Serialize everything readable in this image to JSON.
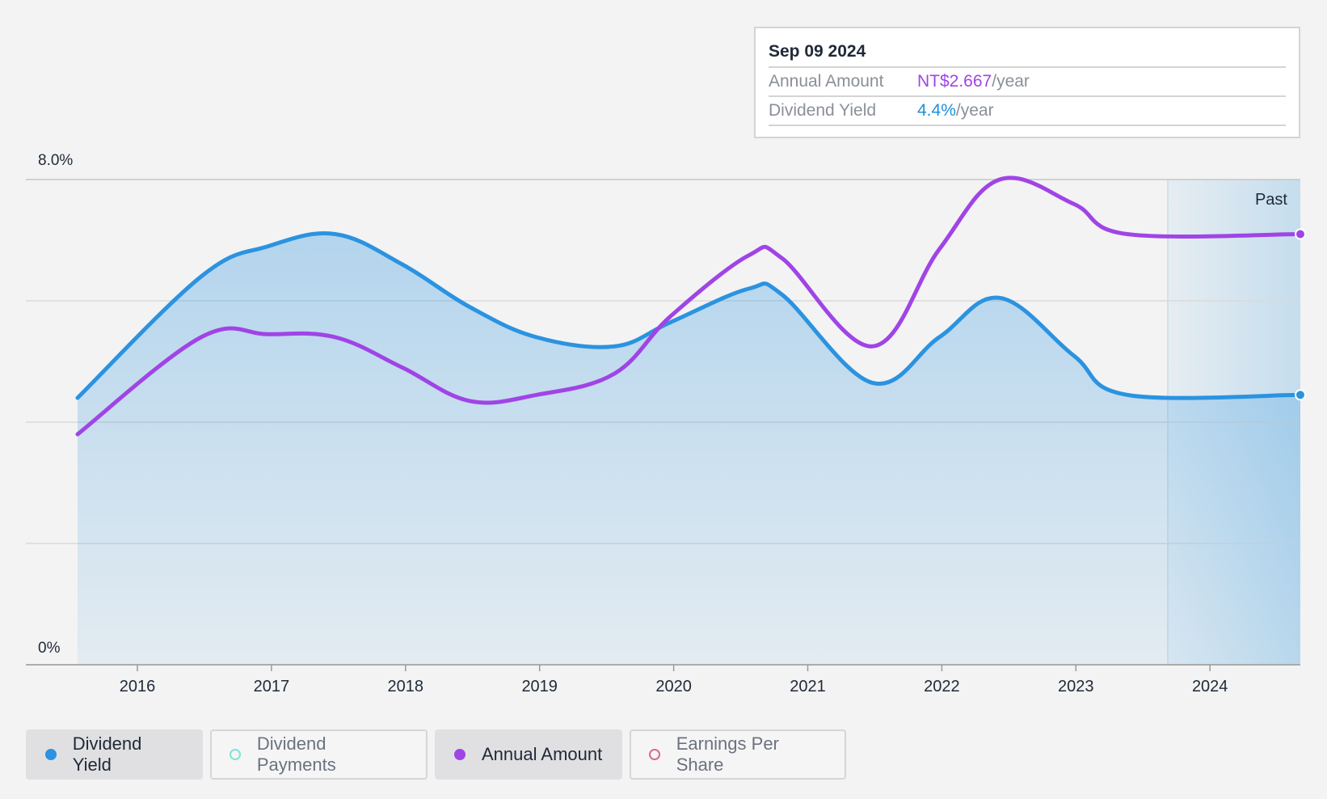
{
  "chart_data": {
    "type": "area",
    "y_axis": {
      "min": 0,
      "max": 8.0,
      "top_label": "8.0%",
      "bottom_label": "0%"
    },
    "x_ticks": [
      "2016",
      "2017",
      "2018",
      "2019",
      "2020",
      "2021",
      "2022",
      "2023",
      "2024"
    ],
    "past_label": "Past",
    "series": [
      {
        "name": "Dividend Yield",
        "color": "#2b93e0",
        "x": [
          2015.58,
          2016.5,
          2017.0,
          2017.5,
          2018.0,
          2018.5,
          2019.0,
          2019.58,
          2020.0,
          2020.58,
          2020.83,
          2021.5,
          2022.0,
          2022.45,
          2023.0,
          2023.4,
          2024.69
        ],
        "values": [
          4.4,
          6.4,
          6.9,
          7.1,
          6.6,
          5.9,
          5.4,
          5.25,
          5.65,
          6.2,
          6.1,
          4.65,
          5.4,
          6.05,
          5.1,
          4.45,
          4.45
        ]
      },
      {
        "name": "Annual Amount",
        "color": "#a044e6",
        "x": [
          2015.58,
          2016.5,
          2017.0,
          2017.5,
          2018.0,
          2018.5,
          2019.0,
          2019.58,
          2020.0,
          2020.58,
          2020.83,
          2021.5,
          2022.0,
          2022.45,
          2023.0,
          2023.4,
          2024.69
        ],
        "values": [
          3.8,
          5.4,
          5.45,
          5.4,
          4.9,
          4.35,
          4.45,
          4.8,
          5.75,
          6.75,
          6.7,
          5.25,
          6.85,
          8.0,
          7.6,
          7.1,
          7.1
        ]
      }
    ],
    "grid": true
  },
  "tooltip": {
    "date": "Sep 09 2024",
    "annual_amount_label": "Annual Amount",
    "annual_amount_value": "NT$2.667",
    "annual_amount_unit": "/year",
    "dividend_yield_label": "Dividend Yield",
    "dividend_yield_value": "4.4%",
    "dividend_yield_unit": "/year"
  },
  "legend": [
    {
      "label": "Dividend Yield",
      "color": "#2b93e0",
      "active": true
    },
    {
      "label": "Dividend Payments",
      "color": "#7fe3d8",
      "active": false
    },
    {
      "label": "Annual Amount",
      "color": "#a044e6",
      "active": true
    },
    {
      "label": "Earnings Per Share",
      "color": "#d66a9b",
      "active": false
    }
  ]
}
